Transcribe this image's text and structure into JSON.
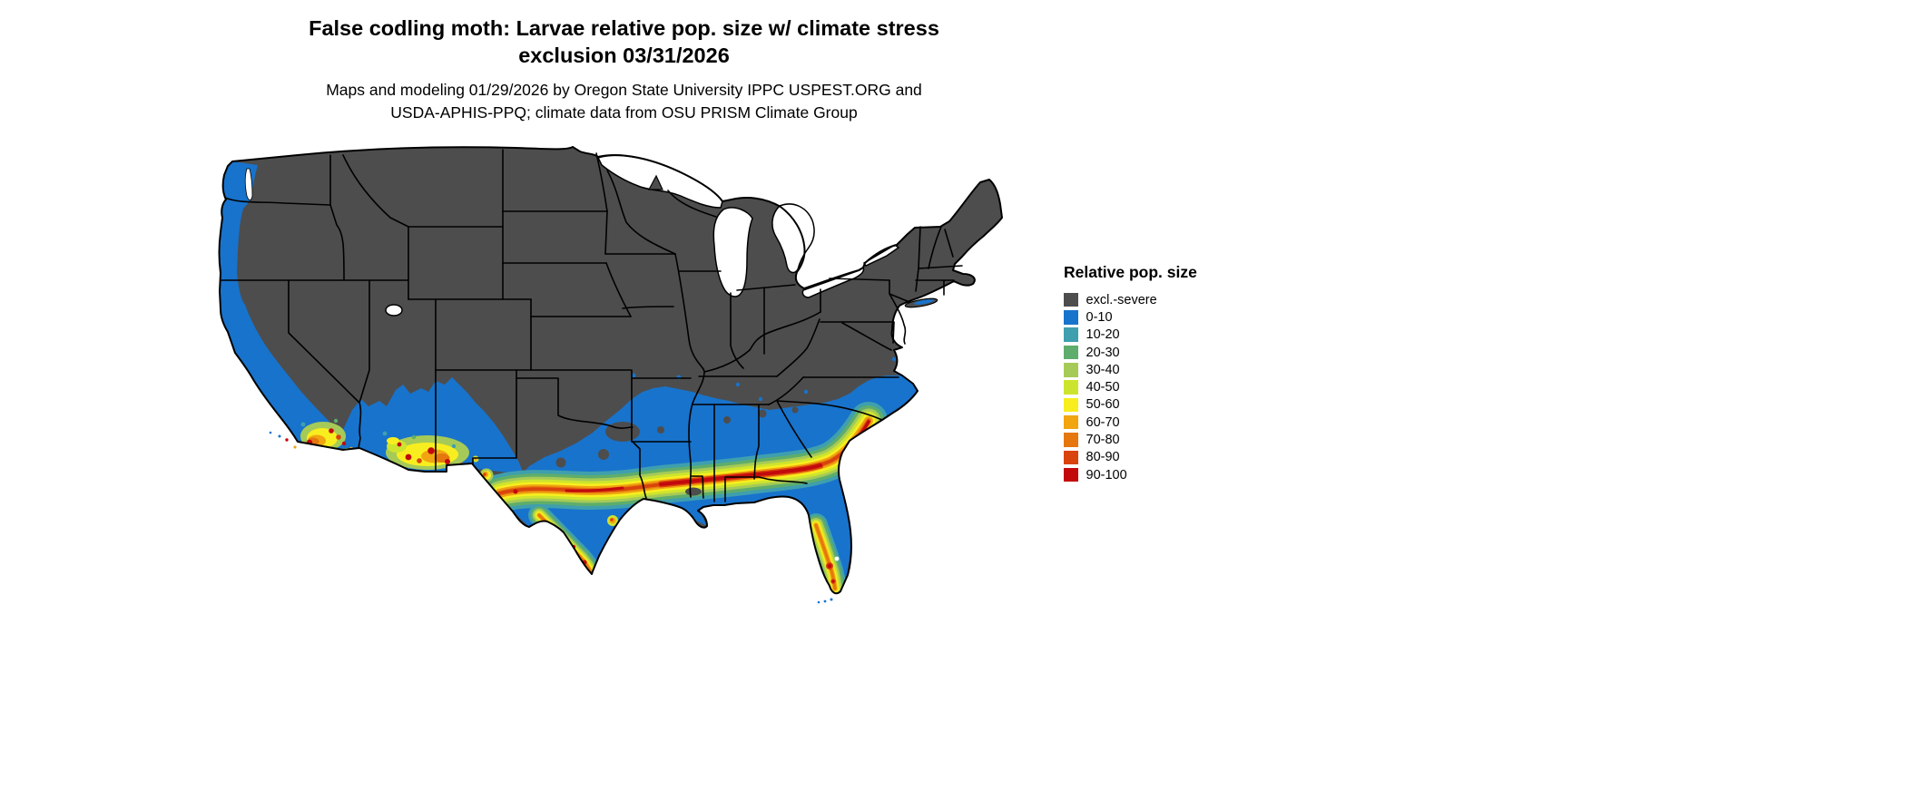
{
  "header": {
    "title_line1": "False codling moth: Larvae relative pop. size w/ climate stress",
    "title_line2": "exclusion 03/31/2026",
    "subtitle_line1": "Maps and modeling 01/29/2026 by Oregon State University IPPC USPEST.ORG and",
    "subtitle_line2": "USDA-APHIS-PPQ; climate data from OSU PRISM Climate Group"
  },
  "legend": {
    "title": "Relative pop. size",
    "items": [
      {
        "key": "excl",
        "label": "excl.-severe",
        "color": "#4d4d4d"
      },
      {
        "key": "b0",
        "label": "0-10",
        "color": "#1873cc"
      },
      {
        "key": "b10",
        "label": "10-20",
        "color": "#3f9fae"
      },
      {
        "key": "b20",
        "label": "20-30",
        "color": "#5ead6c"
      },
      {
        "key": "b30",
        "label": "30-40",
        "color": "#a6ca57"
      },
      {
        "key": "b40",
        "label": "40-50",
        "color": "#cde42e"
      },
      {
        "key": "b50",
        "label": "50-60",
        "color": "#f8ee1f"
      },
      {
        "key": "b60",
        "label": "60-70",
        "color": "#f0a511"
      },
      {
        "key": "b70",
        "label": "70-80",
        "color": "#e5770e"
      },
      {
        "key": "b80",
        "label": "80-90",
        "color": "#d9430d"
      },
      {
        "key": "b90",
        "label": "90-100",
        "color": "#c20a0d"
      }
    ]
  },
  "map": {
    "region": "Continental United States",
    "excluded_land_color": "#4d4d4d",
    "water_color": "#ffffff",
    "boundary_color": "#000000",
    "high_population_areas": "southern Texas through Gulf Coast to coastal Carolinas, southern California, southern Arizona, central-south Florida",
    "low_population_areas": "Pacific coast (WA/OR/CA), southern interior Southwest, southern states coastal plain",
    "excluded_areas": "northern and interior United States"
  }
}
